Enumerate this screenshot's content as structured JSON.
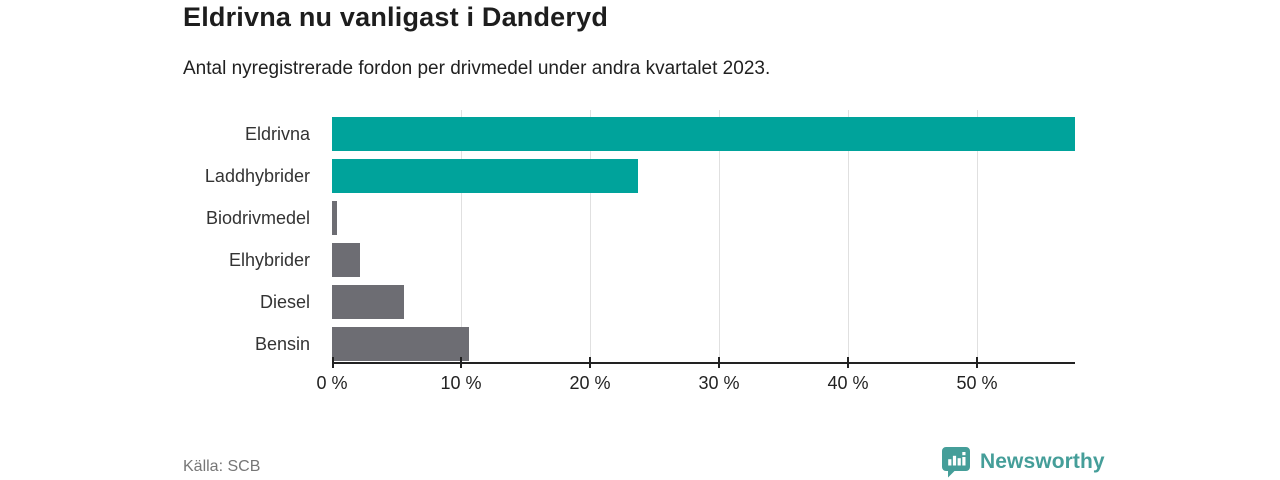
{
  "header": {
    "title": "Eldrivna nu vanligast i Danderyd",
    "subtitle": "Antal nyregistrerade fordon per drivmedel under andra kvartalet 2023."
  },
  "chart_data": {
    "type": "bar",
    "orientation": "horizontal",
    "title": "Eldrivna nu vanligast i Danderyd",
    "subtitle": "Antal nyregistrerade fordon per drivmedel under andra kvartalet 2023.",
    "categories": [
      "Eldrivna",
      "Laddhybrider",
      "Biodrivmedel",
      "Elhybrider",
      "Diesel",
      "Bensin"
    ],
    "values": [
      57.6,
      23.7,
      0.4,
      2.2,
      5.6,
      10.6
    ],
    "unit": "%",
    "xlim": [
      0,
      57.6
    ],
    "ticks": [
      0,
      10,
      20,
      30,
      40,
      50
    ],
    "tick_labels": [
      "0 %",
      "10 %",
      "20 %",
      "30 %",
      "40 %",
      "50 %"
    ],
    "bar_colors": [
      "#00a39b",
      "#00a39b",
      "#6d6d73",
      "#6d6d73",
      "#6d6d73",
      "#6d6d73"
    ],
    "grid": true,
    "legend": null
  },
  "footer": {
    "source": "Källa: SCB",
    "brand": "Newsworthy"
  },
  "colors": {
    "teal": "#00a39b",
    "gray": "#6d6d73",
    "brand_teal": "#459e99",
    "grid": "#e0e0e0",
    "axis": "#222222"
  }
}
